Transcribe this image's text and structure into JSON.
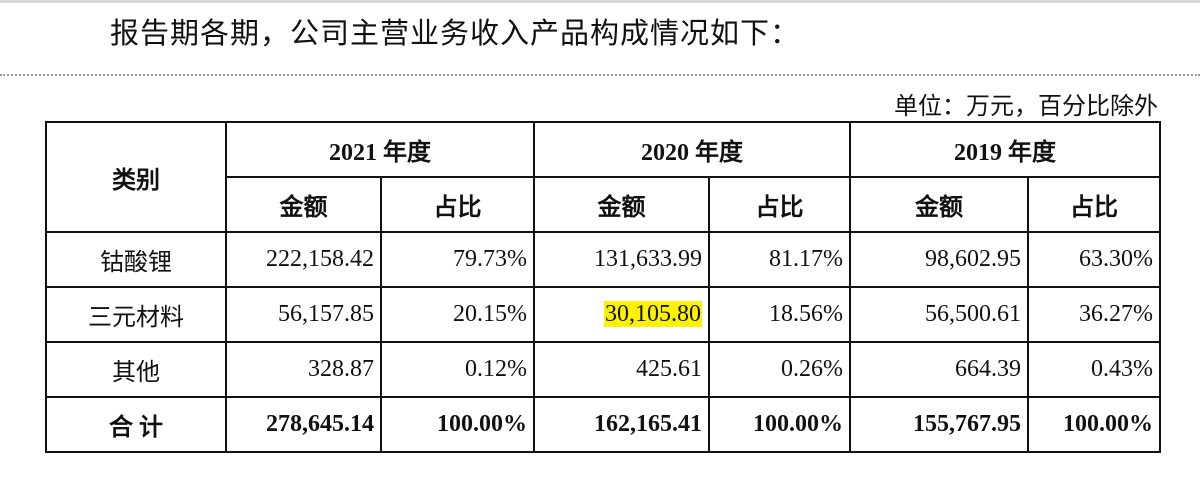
{
  "heading": "报告期各期，公司主营业务收入产品构成情况如下：",
  "unit_note": "单位：万元，百分比除外",
  "highlight_color": "#fff200",
  "table": {
    "category_header": "类别",
    "years": [
      "2021 年度",
      "2020 年度",
      "2019 年度"
    ],
    "sub_headers": {
      "amount": "金额",
      "share": "占比"
    },
    "rows": [
      {
        "label": "钴酸锂",
        "cells": [
          "222,158.42",
          "79.73%",
          "131,633.99",
          "81.17%",
          "98,602.95",
          "63.30%"
        ]
      },
      {
        "label": "三元材料",
        "cells": [
          "56,157.85",
          "20.15%",
          "30,105.80",
          "18.56%",
          "56,500.61",
          "36.27%"
        ]
      },
      {
        "label": "其他",
        "cells": [
          "328.87",
          "0.12%",
          "425.61",
          "0.26%",
          "664.39",
          "0.43%"
        ]
      }
    ],
    "total": {
      "label": "合 计",
      "cells": [
        "278,645.14",
        "100.00%",
        "162,165.41",
        "100.00%",
        "155,767.95",
        "100.00%"
      ]
    }
  }
}
